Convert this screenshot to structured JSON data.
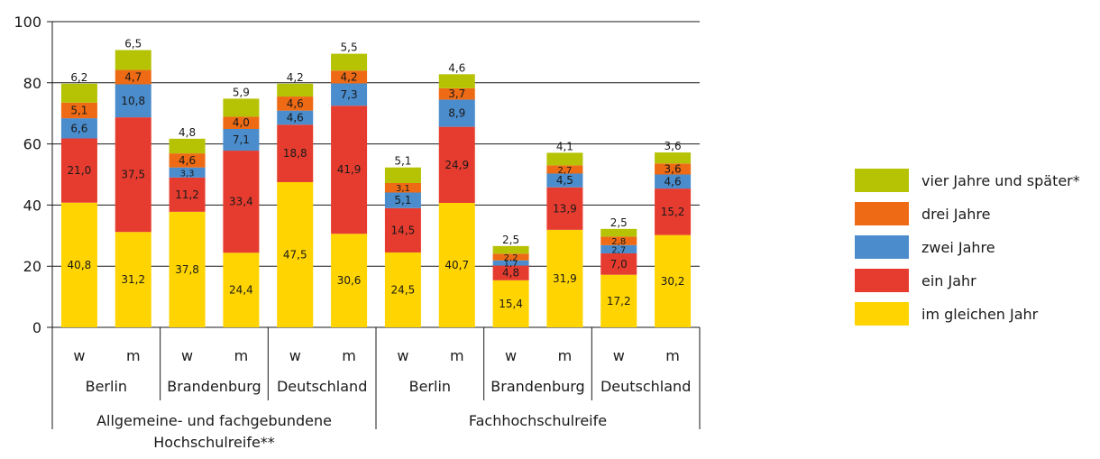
{
  "chart_data": {
    "type": "bar",
    "stacked": true,
    "ylim": [
      0,
      100
    ],
    "y_ticks": [
      0,
      20,
      40,
      60,
      80,
      100
    ],
    "grid": true,
    "legend_position": "right",
    "categories": [
      {
        "sex": "w",
        "region": "Berlin",
        "group": "Allgemeine- und fachgebundene Hochschulreife**"
      },
      {
        "sex": "m",
        "region": "Berlin",
        "group": "Allgemeine- und fachgebundene Hochschulreife**"
      },
      {
        "sex": "w",
        "region": "Brandenburg",
        "group": "Allgemeine- und fachgebundene Hochschulreife**"
      },
      {
        "sex": "m",
        "region": "Brandenburg",
        "group": "Allgemeine- und fachgebundene Hochschulreife**"
      },
      {
        "sex": "w",
        "region": "Deutschland",
        "group": "Allgemeine- und fachgebundene Hochschulreife**"
      },
      {
        "sex": "m",
        "region": "Deutschland",
        "group": "Allgemeine- und fachgebundene Hochschulreife**"
      },
      {
        "sex": "w",
        "region": "Berlin",
        "group": "Fachhochschulreife"
      },
      {
        "sex": "m",
        "region": "Berlin",
        "group": "Fachhochschulreife"
      },
      {
        "sex": "w",
        "region": "Brandenburg",
        "group": "Fachhochschulreife"
      },
      {
        "sex": "m",
        "region": "Brandenburg",
        "group": "Fachhochschulreife"
      },
      {
        "sex": "w",
        "region": "Deutschland",
        "group": "Fachhochschulreife"
      },
      {
        "sex": "m",
        "region": "Deutschland",
        "group": "Fachhochschulreife"
      }
    ],
    "regions": [
      "Berlin",
      "Brandenburg",
      "Deutschland",
      "Berlin",
      "Brandenburg",
      "Deutschland"
    ],
    "groups": [
      "Allgemeine- und fachgebundene\nHochschulreife**",
      "Fachhochschulreife"
    ],
    "series": [
      {
        "name": "im gleichen Jahr",
        "color": "#ffd400",
        "values": [
          40.8,
          31.2,
          37.8,
          24.4,
          47.5,
          30.6,
          24.5,
          40.7,
          15.4,
          31.9,
          17.2,
          30.2
        ],
        "labels": [
          "40,8",
          "31,2",
          "37,8",
          "24,4",
          "47,5",
          "30,6",
          "24,5",
          "40,7",
          "15,4",
          "31,9",
          "17,2",
          "30,2"
        ]
      },
      {
        "name": "ein Jahr",
        "color": "#e63c2f",
        "values": [
          21.0,
          37.5,
          11.2,
          33.4,
          18.8,
          41.9,
          14.5,
          24.9,
          4.8,
          13.9,
          7.0,
          15.2
        ],
        "labels": [
          "21,0",
          "37,5",
          "11,2",
          "33,4",
          "18,8",
          "41,9",
          "14,5",
          "24,9",
          "4,8",
          "13,9",
          "7,0",
          "15,2"
        ]
      },
      {
        "name": "zwei Jahre",
        "color": "#4a8ccc",
        "values": [
          6.6,
          10.8,
          3.3,
          7.1,
          4.6,
          7.3,
          5.1,
          8.9,
          1.7,
          4.5,
          2.7,
          4.6
        ],
        "labels": [
          "6,6",
          "10,8",
          "3,3",
          "7,1",
          "4,6",
          "7,3",
          "5,1",
          "8,9",
          "1,7",
          "4,5",
          "2,7",
          "4,6"
        ]
      },
      {
        "name": "drei Jahre",
        "color": "#ee6a14",
        "values": [
          5.1,
          4.7,
          4.6,
          4.0,
          4.6,
          4.2,
          3.1,
          3.7,
          2.2,
          2.7,
          2.8,
          3.6
        ],
        "labels": [
          "5,1",
          "4,7",
          "4,6",
          "4,0",
          "4,6",
          "4,2",
          "3,1",
          "3,7",
          "2,2",
          "2,7",
          "2,8",
          "3,6"
        ]
      },
      {
        "name": "vier Jahre und später*",
        "color": "#b5c304",
        "values": [
          6.2,
          6.5,
          4.8,
          5.9,
          4.2,
          5.5,
          5.1,
          4.6,
          2.5,
          4.1,
          2.5,
          3.6
        ],
        "labels": [
          "6,2",
          "6,5",
          "4,8",
          "5,9",
          "4,2",
          "5,5",
          "5,1",
          "4,6",
          "2,5",
          "4,1",
          "2,5",
          "3,6"
        ]
      }
    ]
  }
}
